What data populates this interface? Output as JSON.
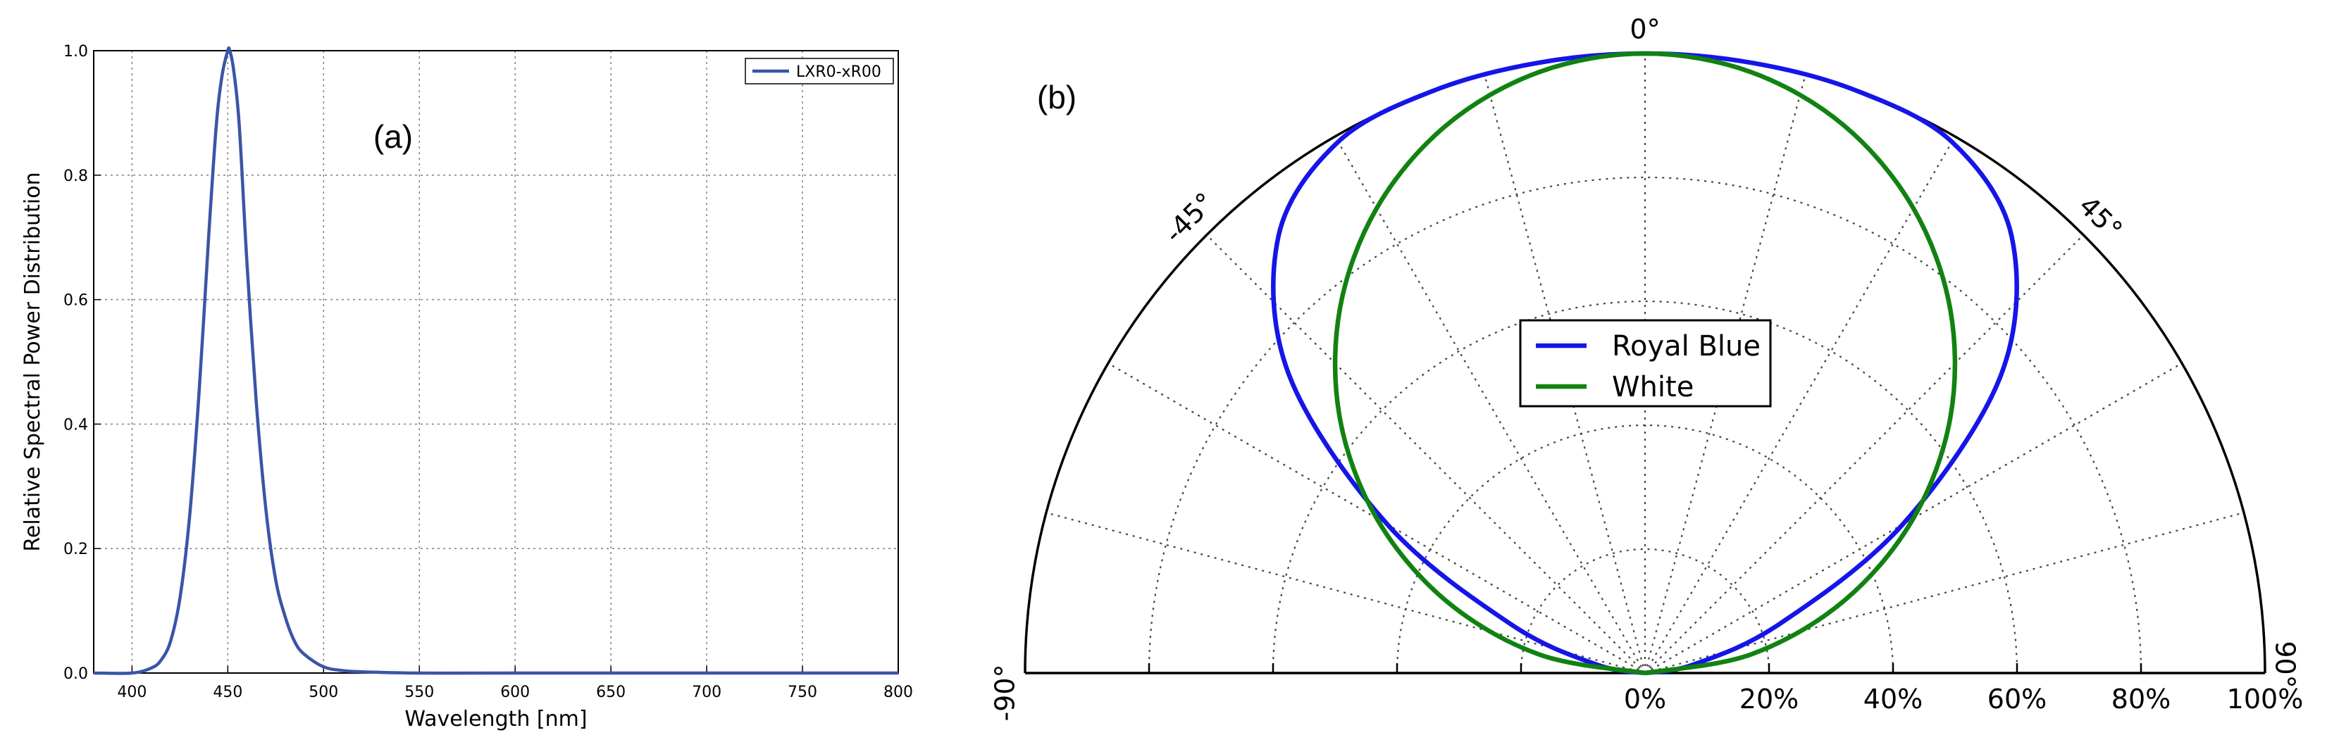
{
  "chart_data": [
    {
      "type": "line",
      "panel_label": "(a)",
      "xlabel": "Wavelength [nm]",
      "ylabel": "Relative Spectral Power Distribution",
      "xlim": [
        380,
        800
      ],
      "ylim": [
        0,
        1.0
      ],
      "x_ticks": [
        400,
        450,
        500,
        550,
        600,
        650,
        700,
        750,
        800
      ],
      "y_ticks": [
        0.0,
        0.2,
        0.4,
        0.6,
        0.8,
        1.0
      ],
      "x_tick_labels": [
        "400",
        "450",
        "500",
        "550",
        "600",
        "650",
        "700",
        "750",
        "800"
      ],
      "y_tick_labels": [
        "0.0",
        "0.2",
        "0.4",
        "0.6",
        "0.8",
        "1.0"
      ],
      "grid": true,
      "legend_position": "top-right",
      "color": "#3a55a8",
      "series": [
        {
          "name": "LXR0-xR00",
          "x": [
            380,
            400,
            410,
            415,
            420,
            425,
            430,
            435,
            440,
            444,
            447,
            450,
            451,
            453,
            456,
            460,
            465,
            470,
            475,
            480,
            485,
            490,
            500,
            510,
            520,
            550,
            600,
            800
          ],
          "y": [
            0.0,
            0.0,
            0.008,
            0.02,
            0.05,
            0.12,
            0.25,
            0.45,
            0.7,
            0.88,
            0.96,
            1.0,
            1.0,
            0.97,
            0.88,
            0.66,
            0.43,
            0.26,
            0.15,
            0.09,
            0.05,
            0.03,
            0.01,
            0.004,
            0.002,
            0.0,
            0.0,
            0.0
          ]
        }
      ]
    },
    {
      "type": "polar",
      "panel_label": "(b)",
      "theta_range": [
        -90,
        90
      ],
      "theta_ticks": [
        -90,
        -45,
        0,
        45,
        90
      ],
      "theta_tick_labels": [
        "-90°",
        "-45°",
        "0°",
        "45°",
        "90°"
      ],
      "r_range": [
        0,
        100
      ],
      "r_ticks": [
        0,
        20,
        40,
        60,
        80,
        100
      ],
      "r_tick_labels": [
        "0%",
        "20%",
        "40%",
        "60%",
        "80%",
        "100%"
      ],
      "grid": true,
      "legend_position": "center",
      "series": [
        {
          "name": "Royal Blue",
          "color": "#1515e8",
          "theta": [
            -90,
            -80,
            -70,
            -60,
            -50,
            -40,
            -30,
            -20,
            -10,
            0,
            10,
            20,
            30,
            40,
            50,
            60,
            70,
            80,
            90
          ],
          "r": [
            0,
            8,
            23,
            48,
            75,
            92,
            99,
            100,
            100,
            100,
            100,
            100,
            99,
            92,
            75,
            48,
            23,
            8,
            0
          ]
        },
        {
          "name": "White",
          "color": "#118211",
          "theta": [
            -90,
            -80,
            -70,
            -60,
            -50,
            -40,
            -30,
            -20,
            -10,
            0,
            10,
            20,
            30,
            40,
            50,
            60,
            70,
            80,
            90
          ],
          "r": [
            0,
            17.4,
            34.2,
            50,
            64.3,
            76.6,
            86.6,
            94,
            98.5,
            100,
            98.5,
            94,
            86.6,
            76.6,
            64.3,
            50,
            34.2,
            17.4,
            0
          ]
        }
      ]
    }
  ]
}
